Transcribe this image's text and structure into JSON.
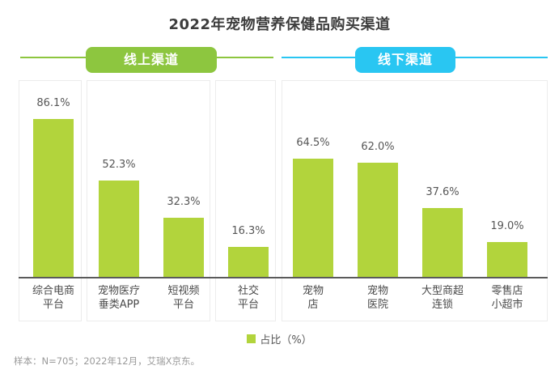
{
  "title": "2022年宠物营养保健品购买渠道",
  "channel_groups": {
    "online": {
      "label": "线上渠道",
      "color": "#8dc63f"
    },
    "offline": {
      "label": "线下渠道",
      "color": "#29c6f2"
    }
  },
  "legend": {
    "label": "占比（%）",
    "swatch_color": "#b2d43c"
  },
  "footnote": "样本：N=705；2022年12月，艾瑞X京东。",
  "chart_data": {
    "type": "bar",
    "title": "2022年宠物营养保健品购买渠道",
    "legend": "占比（%）",
    "ylabel": "占比（%）",
    "ylim": [
      0,
      100
    ],
    "grid": false,
    "bar_color": "#b2d43c",
    "categories": [
      "综合电商平台",
      "宠物医疗垂类APP",
      "短视频平台",
      "社交平台",
      "宠物店",
      "宠物医院",
      "大型商超连锁",
      "零售店小超市"
    ],
    "category_label_lines": [
      [
        "综合电商",
        "平台"
      ],
      [
        "宠物医疗",
        "垂类APP"
      ],
      [
        "短视频",
        "平台"
      ],
      [
        "社交",
        "平台"
      ],
      [
        "宠物",
        "店"
      ],
      [
        "宠物",
        "医院"
      ],
      [
        "大型商超",
        "连锁"
      ],
      [
        "零售店",
        "小超市"
      ]
    ],
    "values": [
      86.1,
      52.3,
      32.3,
      16.3,
      64.5,
      62.0,
      37.6,
      19.0
    ],
    "value_labels": [
      "86.1%",
      "52.3%",
      "32.3%",
      "16.3%",
      "64.5%",
      "62.0%",
      "37.6%",
      "19.0%"
    ],
    "group_membership": [
      "线上渠道",
      "线上渠道",
      "线上渠道",
      "线上渠道",
      "线下渠道",
      "线下渠道",
      "线下渠道",
      "线下渠道"
    ],
    "panel_groups": [
      [
        0
      ],
      [
        1,
        2
      ],
      [
        3
      ],
      [
        4,
        5,
        6,
        7
      ]
    ]
  }
}
